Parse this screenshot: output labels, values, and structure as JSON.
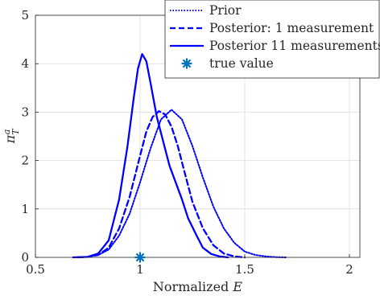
{
  "chart_data": {
    "type": "line",
    "title": "",
    "xlabel": "Normalized E",
    "ylabel": "π_T^a",
    "xlim": [
      0.5,
      2.05
    ],
    "ylim": [
      0,
      5
    ],
    "x_ticks": [
      "0.5",
      "1",
      "1.5",
      "2"
    ],
    "y_ticks": [
      "0",
      "1",
      "2",
      "3",
      "4",
      "5"
    ],
    "grid": true,
    "legend_position": "top-right",
    "series": [
      {
        "name": "Prior",
        "style": "dotted",
        "color": "#0000ff",
        "x": [
          0.7,
          0.75,
          0.8,
          0.85,
          0.9,
          0.95,
          1.0,
          1.05,
          1.1,
          1.15,
          1.2,
          1.25,
          1.3,
          1.35,
          1.4,
          1.45,
          1.5,
          1.55,
          1.6,
          1.65,
          1.7
        ],
        "y": [
          0.0,
          0.01,
          0.05,
          0.16,
          0.45,
          0.9,
          1.55,
          2.25,
          2.85,
          3.05,
          2.85,
          2.3,
          1.65,
          1.05,
          0.6,
          0.3,
          0.12,
          0.05,
          0.02,
          0.005,
          0.0
        ]
      },
      {
        "name": "Posterior: 1 measurement",
        "style": "dashed",
        "color": "#0000ff",
        "x": [
          0.7,
          0.75,
          0.8,
          0.85,
          0.9,
          0.95,
          1.0,
          1.03,
          1.06,
          1.09,
          1.12,
          1.15,
          1.18,
          1.21,
          1.25,
          1.3,
          1.35,
          1.4,
          1.45,
          1.5
        ],
        "y": [
          0.0,
          0.01,
          0.05,
          0.2,
          0.6,
          1.25,
          2.1,
          2.6,
          2.9,
          3.02,
          2.95,
          2.7,
          2.3,
          1.8,
          1.15,
          0.6,
          0.25,
          0.08,
          0.02,
          0.0
        ]
      },
      {
        "name": "Posterior 11 measurements",
        "style": "solid",
        "color": "#0000ff",
        "x": [
          0.68,
          0.75,
          0.8,
          0.85,
          0.9,
          0.94,
          0.97,
          0.99,
          1.01,
          1.03,
          1.05,
          1.08,
          1.11,
          1.14,
          1.17,
          1.2,
          1.23,
          1.27,
          1.3,
          1.34,
          1.38,
          1.42
        ],
        "y": [
          0.0,
          0.01,
          0.08,
          0.35,
          1.2,
          2.3,
          3.3,
          3.9,
          4.2,
          4.05,
          3.6,
          2.9,
          2.4,
          1.9,
          1.55,
          1.2,
          0.8,
          0.45,
          0.2,
          0.07,
          0.02,
          0.0
        ]
      },
      {
        "name": "true value",
        "style": "marker",
        "marker": "asterisk",
        "color": "#0072bd",
        "x": [
          1.0
        ],
        "y": [
          0.0
        ]
      }
    ]
  }
}
